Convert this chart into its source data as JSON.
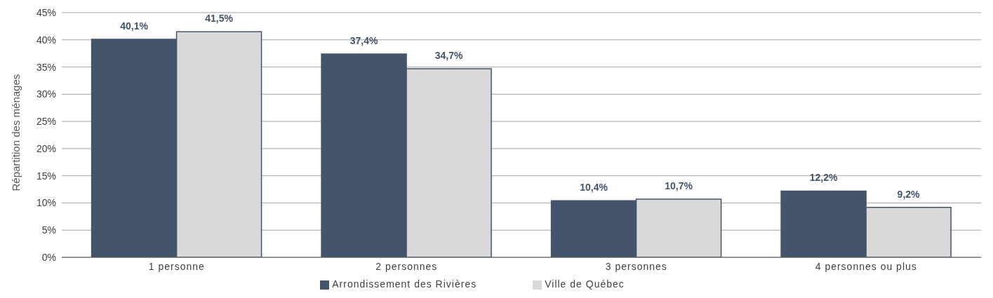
{
  "chart_data": {
    "type": "bar",
    "ylabel": "Répartition des ménages",
    "categories": [
      "1 personne",
      "2 personnes",
      "3 personnes",
      "4 personnes ou plus"
    ],
    "series": [
      {
        "name": "Arrondissement des Rivières",
        "color": "#44546a",
        "values": [
          40.1,
          37.4,
          10.4,
          12.2
        ],
        "value_labels": [
          "40,1%",
          "37,4%",
          "10,4%",
          "12,2%"
        ]
      },
      {
        "name": "Ville de Québec",
        "color": "#d9d9d9",
        "values": [
          41.5,
          34.7,
          10.7,
          9.2
        ],
        "value_labels": [
          "41,5%",
          "34,7%",
          "10,7%",
          "9,2%"
        ]
      }
    ],
    "ylim": [
      0,
      45
    ],
    "yticks": [
      {
        "value": 0,
        "label": "0%"
      },
      {
        "value": 5,
        "label": "5%"
      },
      {
        "value": 10,
        "label": "10%"
      },
      {
        "value": 15,
        "label": "15%"
      },
      {
        "value": 20,
        "label": "20%"
      },
      {
        "value": 25,
        "label": "25%"
      },
      {
        "value": 30,
        "label": "30%"
      },
      {
        "value": 35,
        "label": "35%"
      },
      {
        "value": 40,
        "label": "40%"
      },
      {
        "value": 45,
        "label": "45%"
      }
    ],
    "grid": "y",
    "legend": "bottom"
  }
}
